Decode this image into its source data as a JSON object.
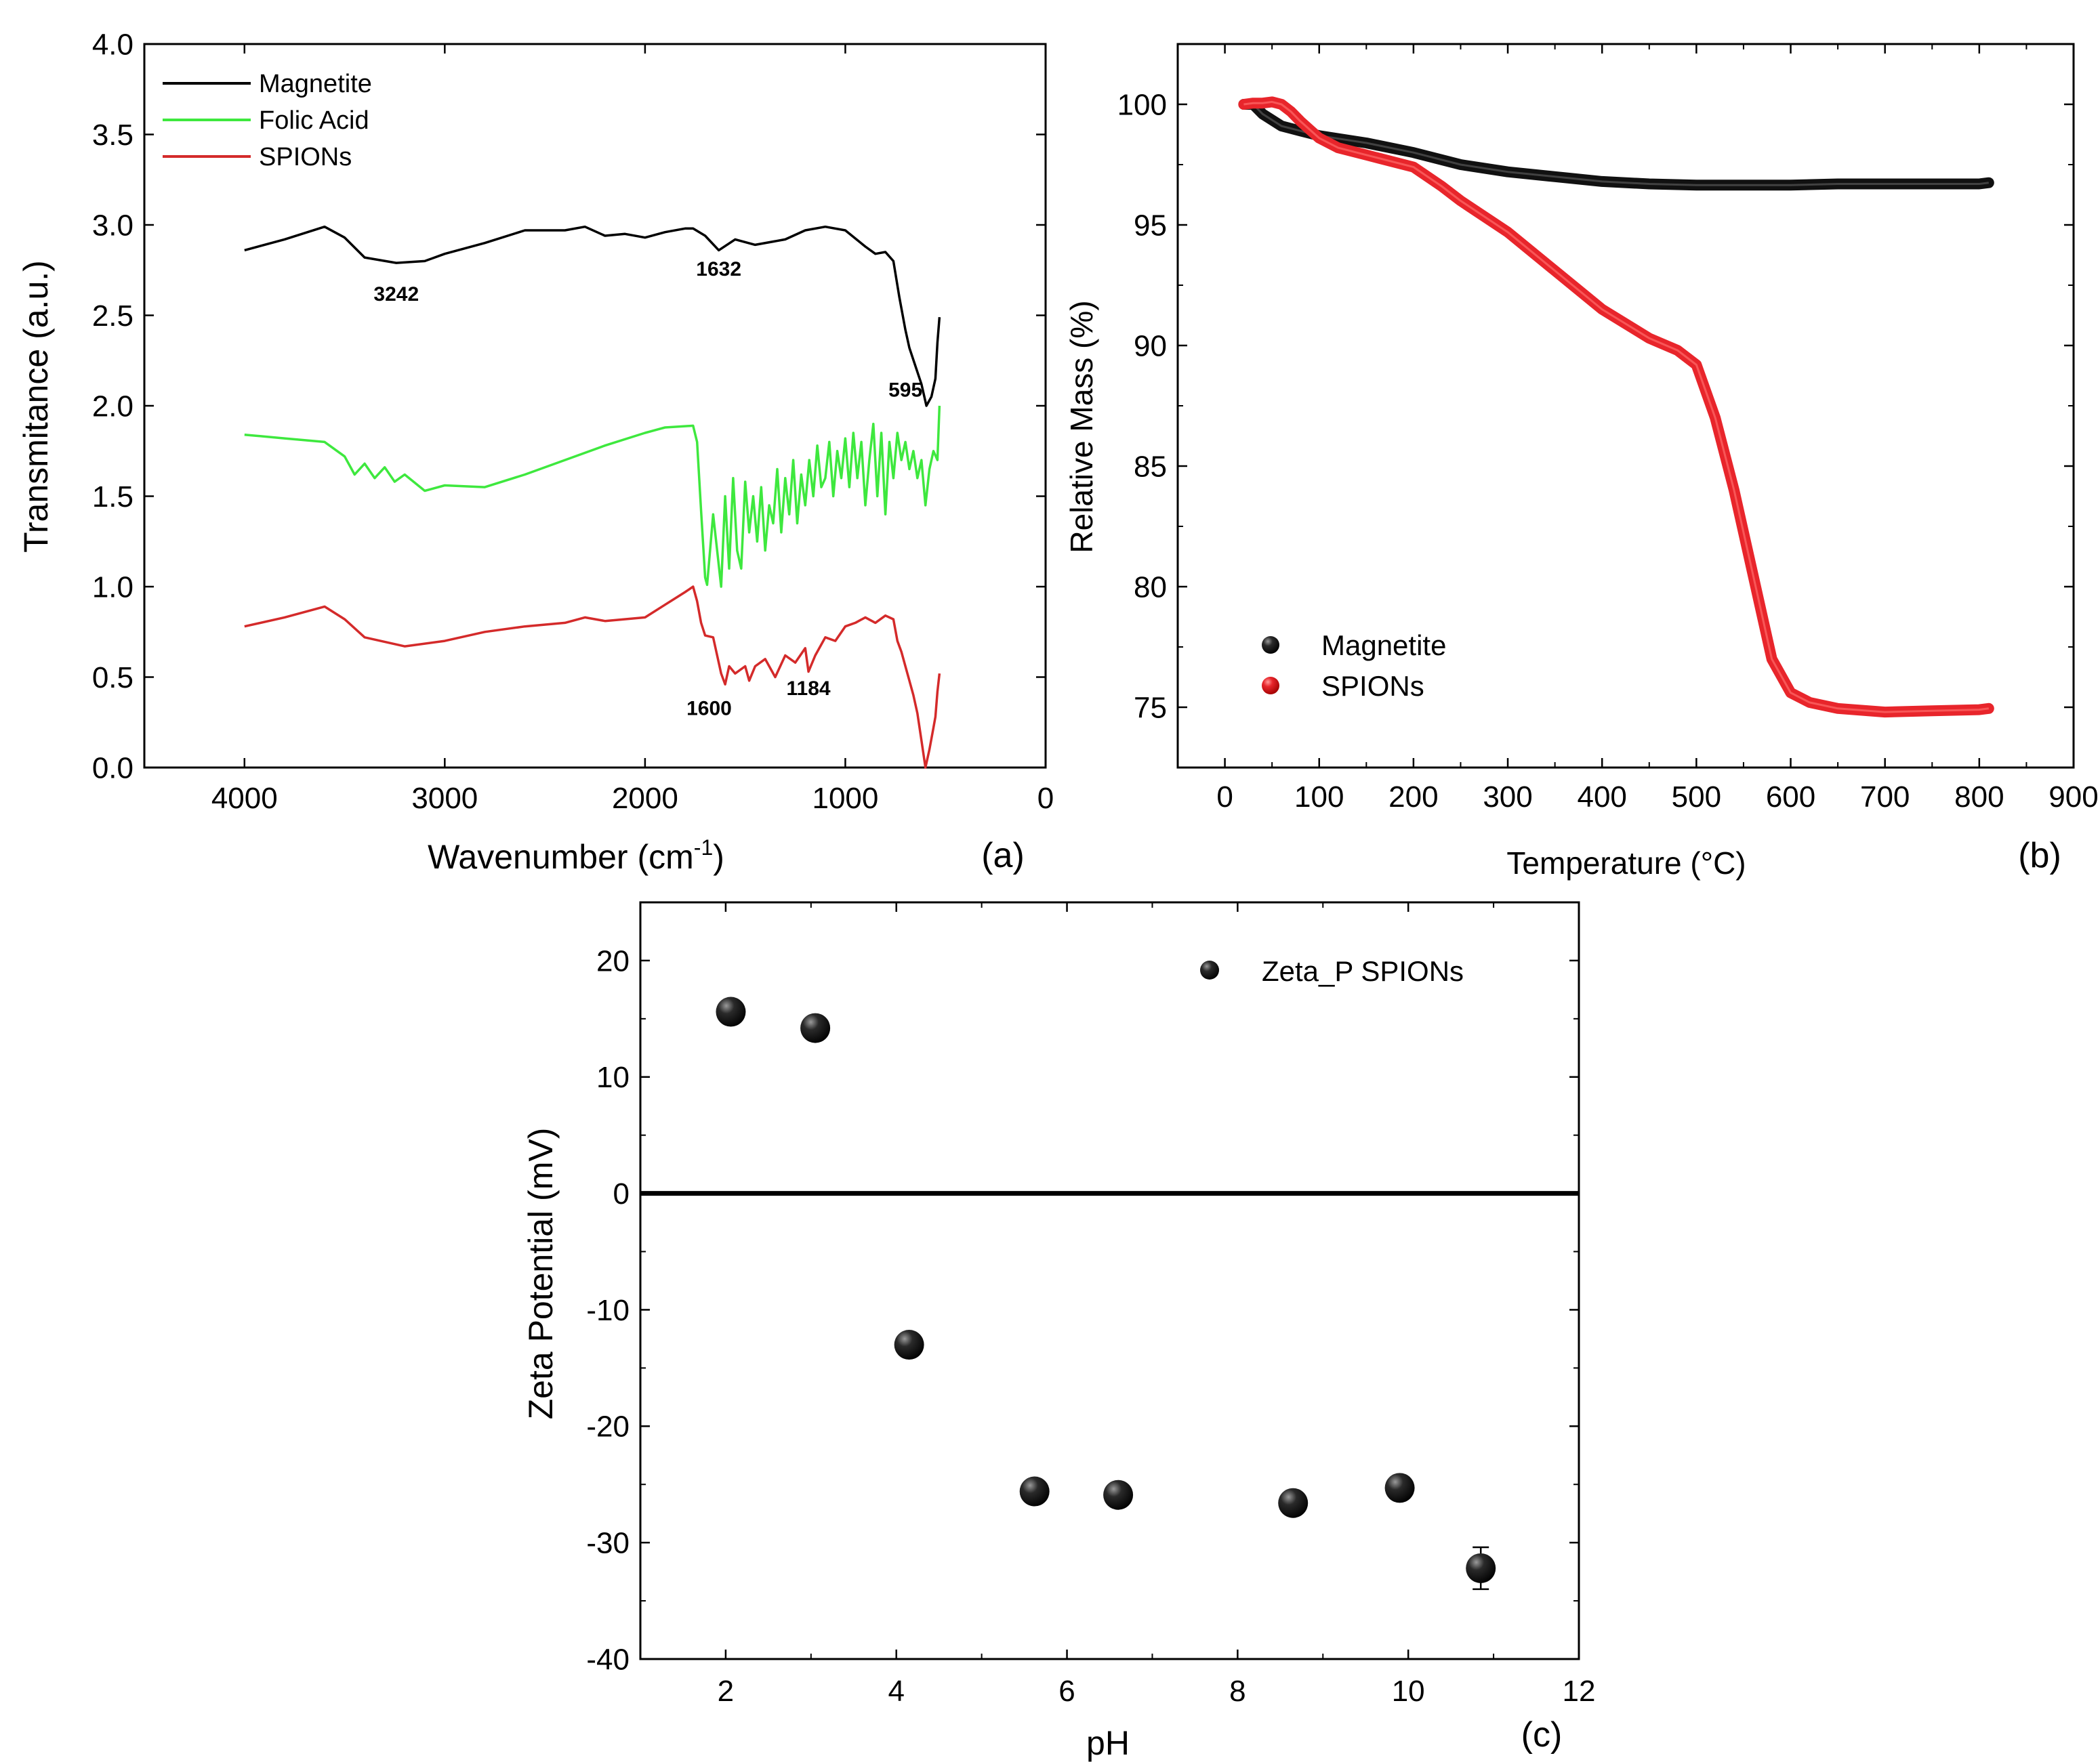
{
  "panel_labels": {
    "a": "(a)",
    "b": "(b)",
    "c": "(c)"
  },
  "chart_data": [
    {
      "panel": "a",
      "type": "line",
      "xlabel": "Wavenumber (cm",
      "xlabel_sup": "-1",
      "xlabel_suffix": ")",
      "ylabel": "Transmitance (a.u.)",
      "xlim": [
        4500,
        0
      ],
      "ylim": [
        0,
        4.0
      ],
      "xticks": [
        "4000",
        "3000",
        "2000",
        "1000",
        "0"
      ],
      "yticks": [
        "0.0",
        "0.5",
        "1.0",
        "1.5",
        "2.0",
        "2.5",
        "3.0",
        "3.5",
        "4.0"
      ],
      "legend_position": "top-left",
      "series": [
        {
          "name": "Magnetite",
          "color": "#000000",
          "x": [
            4000,
            3800,
            3600,
            3500,
            3400,
            3242,
            3100,
            3000,
            2800,
            2600,
            2400,
            2300,
            2200,
            2100,
            2000,
            1900,
            1800,
            1760,
            1700,
            1632,
            1550,
            1450,
            1300,
            1200,
            1100,
            1000,
            900,
            850,
            800,
            760,
            730,
            700,
            680,
            650,
            620,
            595,
            570,
            550,
            540,
            530
          ],
          "y": [
            2.86,
            2.92,
            2.99,
            2.93,
            2.82,
            2.79,
            2.8,
            2.84,
            2.9,
            2.97,
            2.97,
            2.99,
            2.94,
            2.95,
            2.93,
            2.96,
            2.98,
            2.98,
            2.94,
            2.86,
            2.92,
            2.89,
            2.92,
            2.97,
            2.99,
            2.97,
            2.88,
            2.84,
            2.85,
            2.8,
            2.6,
            2.42,
            2.32,
            2.22,
            2.12,
            2.0,
            2.05,
            2.15,
            2.35,
            2.49
          ]
        },
        {
          "name": "Folic Acid",
          "color": "#3ee83e",
          "x": [
            4000,
            3800,
            3600,
            3500,
            3450,
            3400,
            3350,
            3300,
            3250,
            3200,
            3100,
            3000,
            2800,
            2600,
            2400,
            2200,
            2000,
            1900,
            1760,
            1740,
            1720,
            1700,
            1690,
            1660,
            1640,
            1620,
            1600,
            1580,
            1560,
            1540,
            1520,
            1500,
            1480,
            1460,
            1440,
            1420,
            1400,
            1380,
            1360,
            1340,
            1320,
            1300,
            1280,
            1260,
            1240,
            1220,
            1200,
            1180,
            1160,
            1140,
            1120,
            1100,
            1080,
            1060,
            1040,
            1020,
            1000,
            980,
            960,
            940,
            920,
            900,
            880,
            860,
            840,
            820,
            800,
            780,
            760,
            740,
            720,
            700,
            680,
            660,
            640,
            620,
            600,
            580,
            560,
            540,
            530
          ],
          "y": [
            1.84,
            1.82,
            1.8,
            1.72,
            1.62,
            1.68,
            1.6,
            1.66,
            1.58,
            1.62,
            1.53,
            1.56,
            1.55,
            1.62,
            1.7,
            1.78,
            1.85,
            1.88,
            1.89,
            1.8,
            1.42,
            1.05,
            1.01,
            1.4,
            1.2,
            1.0,
            1.5,
            1.1,
            1.6,
            1.2,
            1.1,
            1.58,
            1.3,
            1.5,
            1.25,
            1.55,
            1.2,
            1.45,
            1.35,
            1.65,
            1.3,
            1.6,
            1.4,
            1.7,
            1.35,
            1.62,
            1.45,
            1.7,
            1.5,
            1.78,
            1.55,
            1.6,
            1.8,
            1.5,
            1.75,
            1.6,
            1.82,
            1.55,
            1.85,
            1.6,
            1.8,
            1.45,
            1.7,
            1.9,
            1.5,
            1.85,
            1.4,
            1.8,
            1.6,
            1.85,
            1.7,
            1.8,
            1.65,
            1.75,
            1.6,
            1.7,
            1.45,
            1.65,
            1.75,
            1.7,
            2.0
          ]
        },
        {
          "name": "SPIONs",
          "color": "#d42a2a",
          "x": [
            4000,
            3800,
            3600,
            3500,
            3400,
            3200,
            3000,
            2800,
            2600,
            2400,
            2300,
            2200,
            2000,
            1900,
            1800,
            1760,
            1740,
            1720,
            1700,
            1660,
            1640,
            1620,
            1600,
            1580,
            1550,
            1500,
            1480,
            1450,
            1400,
            1350,
            1300,
            1250,
            1200,
            1184,
            1150,
            1100,
            1050,
            1000,
            950,
            900,
            850,
            800,
            760,
            740,
            720,
            700,
            680,
            660,
            640,
            620,
            600,
            580,
            560,
            550,
            540,
            530
          ],
          "y": [
            0.78,
            0.83,
            0.89,
            0.82,
            0.72,
            0.67,
            0.7,
            0.75,
            0.78,
            0.8,
            0.83,
            0.81,
            0.83,
            0.9,
            0.97,
            1.0,
            0.92,
            0.8,
            0.73,
            0.72,
            0.62,
            0.52,
            0.46,
            0.56,
            0.52,
            0.56,
            0.48,
            0.56,
            0.6,
            0.5,
            0.62,
            0.58,
            0.66,
            0.53,
            0.62,
            0.72,
            0.7,
            0.78,
            0.8,
            0.83,
            0.8,
            0.84,
            0.82,
            0.7,
            0.64,
            0.56,
            0.48,
            0.4,
            0.3,
            0.15,
            0.0,
            0.1,
            0.22,
            0.28,
            0.42,
            0.52
          ]
        }
      ],
      "annotations": [
        {
          "text": "3242",
          "x": 3242,
          "y": 2.58
        },
        {
          "text": "1632",
          "x": 1632,
          "y": 2.72
        },
        {
          "text": "595",
          "x": 700,
          "y": 2.05
        },
        {
          "text": "1600",
          "x": 1680,
          "y": 0.29
        },
        {
          "text": "1184",
          "x": 1184,
          "y": 0.4
        }
      ]
    },
    {
      "panel": "b",
      "type": "scatter",
      "xlabel": "Temperature (°C)",
      "ylabel": "Relative Mass (%)",
      "xlim": [
        -50,
        900
      ],
      "ylim": [
        72.5,
        102.5
      ],
      "xticks": [
        "0",
        "100",
        "200",
        "300",
        "400",
        "500",
        "600",
        "700",
        "800",
        "900"
      ],
      "yticks": [
        "75",
        "80",
        "85",
        "90",
        "95",
        "100"
      ],
      "legend_position": "bottom-left",
      "series": [
        {
          "name": "Magnetite",
          "color": "#111111",
          "x": [
            20,
            30,
            40,
            60,
            80,
            100,
            150,
            200,
            250,
            300,
            350,
            400,
            450,
            500,
            550,
            600,
            650,
            700,
            750,
            800,
            810
          ],
          "y": [
            100.0,
            100.0,
            99.6,
            99.1,
            98.9,
            98.7,
            98.4,
            98.0,
            97.5,
            97.2,
            97.0,
            96.8,
            96.7,
            96.65,
            96.65,
            96.65,
            96.7,
            96.7,
            96.7,
            96.7,
            96.75
          ]
        },
        {
          "name": "SPIONs",
          "color": "#e8252b",
          "x": [
            20,
            30,
            40,
            50,
            60,
            70,
            80,
            100,
            120,
            150,
            200,
            230,
            250,
            300,
            350,
            400,
            450,
            480,
            500,
            520,
            540,
            560,
            580,
            600,
            620,
            650,
            700,
            750,
            800,
            810
          ],
          "y": [
            100.0,
            100.05,
            100.05,
            100.1,
            100.0,
            99.7,
            99.3,
            98.6,
            98.2,
            97.9,
            97.4,
            96.6,
            96.0,
            94.7,
            93.1,
            91.5,
            90.3,
            89.8,
            89.2,
            87.0,
            84.0,
            80.5,
            77.0,
            75.6,
            75.2,
            74.95,
            74.8,
            74.85,
            74.9,
            74.95
          ]
        }
      ]
    },
    {
      "panel": "c",
      "type": "scatter",
      "xlabel": "pH",
      "ylabel": "Zeta Potential (mV)",
      "xlim": [
        1,
        12
      ],
      "ylim": [
        -40,
        25
      ],
      "xticks": [
        "2",
        "4",
        "6",
        "8",
        "10",
        "12"
      ],
      "yticks": [
        "-40",
        "-30",
        "-20",
        "-10",
        "0",
        "10",
        "20"
      ],
      "zero_line": true,
      "legend_position": "top-right",
      "series": [
        {
          "name": "Zeta_P SPIONs",
          "color": "#111111",
          "x": [
            2.06,
            3.05,
            4.15,
            5.62,
            6.6,
            8.65,
            9.9,
            10.85
          ],
          "y": [
            15.6,
            14.2,
            -13.0,
            -25.6,
            -25.9,
            -26.6,
            -25.3,
            -32.2
          ],
          "error": [
            0.5,
            0.5,
            0.5,
            0.5,
            0.5,
            0.5,
            0.9,
            1.8
          ]
        }
      ]
    }
  ]
}
